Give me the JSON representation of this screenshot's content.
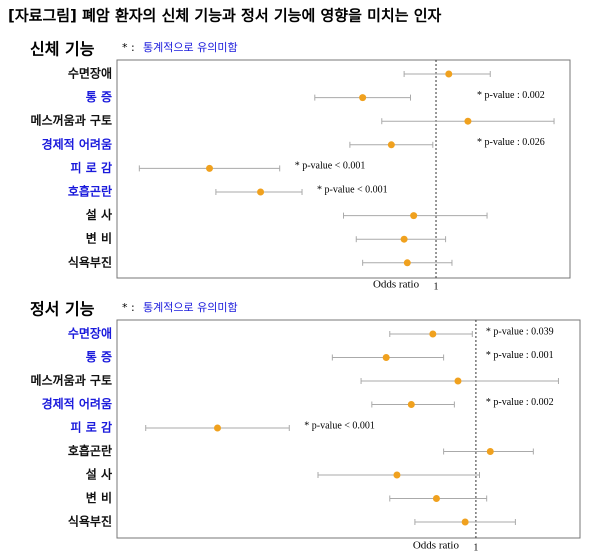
{
  "title": "[자료그림] 폐암 환자의 신체 기능과 정서 기능에 영향을 미치는 인자",
  "chart_data": [
    {
      "type": "forest",
      "title": "신체 기능",
      "note_marker": "* :",
      "note": "통계적으로 유의미함",
      "xlabel": "Odds ratio",
      "xlim": [
        0,
        1.42
      ],
      "xticks": [
        1
      ],
      "categories": [
        "수면장애",
        "통 증",
        "메스꺼움과 구토",
        "경제적 어려움",
        "피 로 감",
        "호흡곤란",
        "설 사",
        "변 비",
        "식욕부진"
      ],
      "label_colors": [
        "#111111",
        "#1a1adc",
        "#111111",
        "#1a1adc",
        "#1a1adc",
        "#1a1adc",
        "#111111",
        "#111111",
        "#111111"
      ],
      "values": [
        1.04,
        0.77,
        1.1,
        0.86,
        0.29,
        0.45,
        0.93,
        0.9,
        0.91
      ],
      "ci_low": [
        0.9,
        0.62,
        0.83,
        0.73,
        0.07,
        0.31,
        0.71,
        0.75,
        0.77
      ],
      "ci_high": [
        1.17,
        0.92,
        1.37,
        0.99,
        0.51,
        0.58,
        1.16,
        1.03,
        1.05
      ],
      "annotations": [
        null,
        "* p-value : 0.002",
        null,
        "* p-value : 0.026",
        "* p-value < 0.001",
        "* p-value < 0.001",
        null,
        null,
        null
      ],
      "color": "#f0a11e"
    },
    {
      "type": "forest",
      "title": "정서 기능",
      "note_marker": "* :",
      "note": "통계적으로 유의미함",
      "xlabel": "Odds ratio",
      "xlim": [
        0,
        1.29
      ],
      "xticks": [
        1
      ],
      "categories": [
        "수면장애",
        "통 증",
        "메스꺼움과 구토",
        "경제적 어려움",
        "피 로 감",
        "호흡곤란",
        "설 사",
        "변 비",
        "식욕부진"
      ],
      "label_colors": [
        "#1a1adc",
        "#1a1adc",
        "#111111",
        "#1a1adc",
        "#1a1adc",
        "#111111",
        "#111111",
        "#111111",
        "#111111"
      ],
      "values": [
        0.88,
        0.75,
        0.95,
        0.82,
        0.28,
        1.04,
        0.78,
        0.89,
        0.97
      ],
      "ci_low": [
        0.76,
        0.6,
        0.68,
        0.71,
        0.08,
        0.91,
        0.56,
        0.76,
        0.83
      ],
      "ci_high": [
        0.99,
        0.91,
        1.23,
        0.94,
        0.48,
        1.16,
        1.01,
        1.03,
        1.11
      ],
      "annotations": [
        "* p-value : 0.039",
        "* p-value : 0.001",
        null,
        "* p-value : 0.002",
        "* p-value < 0.001",
        null,
        null,
        null,
        null
      ],
      "color": "#f0a11e"
    }
  ]
}
